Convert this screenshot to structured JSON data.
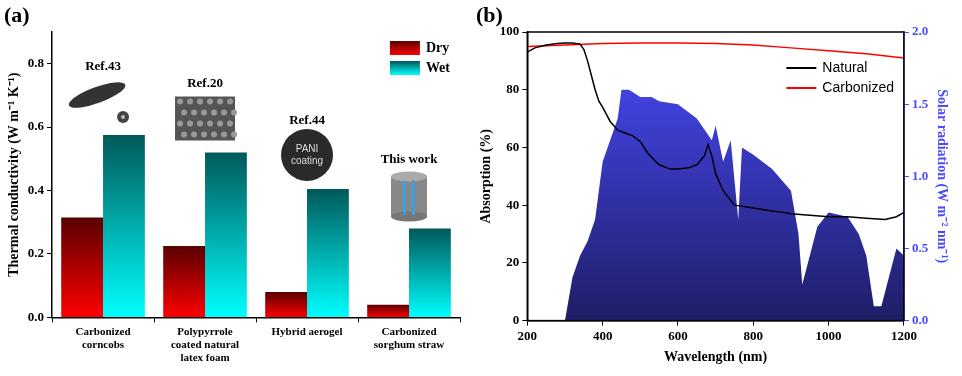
{
  "chart_data": [
    {
      "type": "bar",
      "panel": "(a)",
      "y_label": "Thermal conductivity (W m⁻¹ K⁻¹)",
      "categories": [
        "Carbonized corncobs",
        "Polypyrrole coated natural latex foam",
        "Hybrid aerogel",
        "Carbonized sorghum straw"
      ],
      "series": [
        {
          "name": "Dry",
          "color": "#ff0000",
          "values": [
            0.315,
            0.225,
            0.08,
            0.04
          ]
        },
        {
          "name": "Wet",
          "color": "#00ffff",
          "values": [
            0.575,
            0.52,
            0.405,
            0.28
          ]
        }
      ],
      "ylim": [
        0,
        0.9
      ],
      "yticks": [
        {
          "value": 0,
          "label": "0.0"
        },
        0.2,
        0.4,
        0.6,
        0.8
      ],
      "grid": false,
      "legend": "upper right",
      "annotations": [
        {
          "category": "Carbonized corncobs",
          "text": "Ref.43"
        },
        {
          "category": "Polypyrrole coated natural latex foam",
          "text": "Ref.20"
        },
        {
          "category": "Hybrid aerogel",
          "text": "Ref.44",
          "inset_text": "PANI coating"
        },
        {
          "category": "Carbonized sorghum straw",
          "text": "This work"
        }
      ]
    },
    {
      "type": "line",
      "panel": "(b)",
      "x_label": "Wavelength (nm)",
      "y_label": "Absorption (%)",
      "y2_label": "Solar radiation (W m⁻² nm⁻¹)",
      "xlim": [
        200,
        1200
      ],
      "xticks": [
        200,
        400,
        600,
        800,
        1000,
        1200
      ],
      "ylim": [
        0,
        100
      ],
      "yticks": [
        0,
        20,
        40,
        60,
        80,
        100
      ],
      "y2lim": [
        0,
        2
      ],
      "y2ticks": [
        {
          "value": 0,
          "label": "0.0"
        },
        0.5,
        {
          "value": 1,
          "label": "1.0"
        },
        1.5,
        {
          "value": 2,
          "label": "2.0"
        }
      ],
      "grid": false,
      "legend": "upper right",
      "series": [
        {
          "type": "area",
          "axis": "y2",
          "color": "#4b4bff",
          "x": [
            300,
            320,
            340,
            360,
            380,
            400,
            420,
            440,
            450,
            470,
            500,
            530,
            550,
            600,
            650,
            690,
            700,
            720,
            740,
            760,
            770,
            800,
            850,
            900,
            920,
            930,
            950,
            970,
            1000,
            1050,
            1080,
            1100,
            1120,
            1140,
            1160,
            1180,
            1200
          ],
          "values": [
            0,
            0.3,
            0.45,
            0.55,
            0.7,
            1.1,
            1.25,
            1.4,
            1.6,
            1.6,
            1.55,
            1.55,
            1.52,
            1.5,
            1.4,
            1.25,
            1.35,
            1.1,
            1.25,
            0.7,
            1.2,
            1.15,
            1.05,
            0.9,
            0.6,
            0.25,
            0.45,
            0.65,
            0.75,
            0.72,
            0.6,
            0.45,
            0.1,
            0.1,
            0.3,
            0.5,
            0.45
          ]
        },
        {
          "name": "Natural",
          "color": "#000000",
          "x": [
            200,
            220,
            250,
            280,
            300,
            320,
            340,
            350,
            360,
            370,
            380,
            390,
            400,
            420,
            440,
            460,
            480,
            500,
            520,
            550,
            580,
            600,
            630,
            650,
            670,
            680,
            690,
            700,
            720,
            750,
            800,
            850,
            880,
            900,
            950,
            1000,
            1050,
            1100,
            1150,
            1180,
            1200
          ],
          "values": [
            93,
            94.5,
            95.5,
            96,
            96.2,
            96.2,
            95.8,
            94,
            90,
            85,
            80,
            76,
            74,
            69,
            66,
            65,
            64,
            62,
            58,
            54,
            52.5,
            52.5,
            53,
            54,
            57,
            61,
            57,
            51,
            45,
            40,
            39,
            38,
            37.5,
            37,
            36.5,
            36,
            36,
            35.5,
            35,
            36,
            37.5
          ]
        },
        {
          "name": "Carbonized",
          "color": "#ff0000",
          "x": [
            200,
            300,
            400,
            500,
            600,
            700,
            800,
            900,
            1000,
            1100,
            1200
          ],
          "values": [
            95,
            95.5,
            96,
            96.2,
            96.2,
            96,
            95.5,
            94.5,
            93.5,
            92.5,
            91
          ]
        }
      ]
    }
  ]
}
